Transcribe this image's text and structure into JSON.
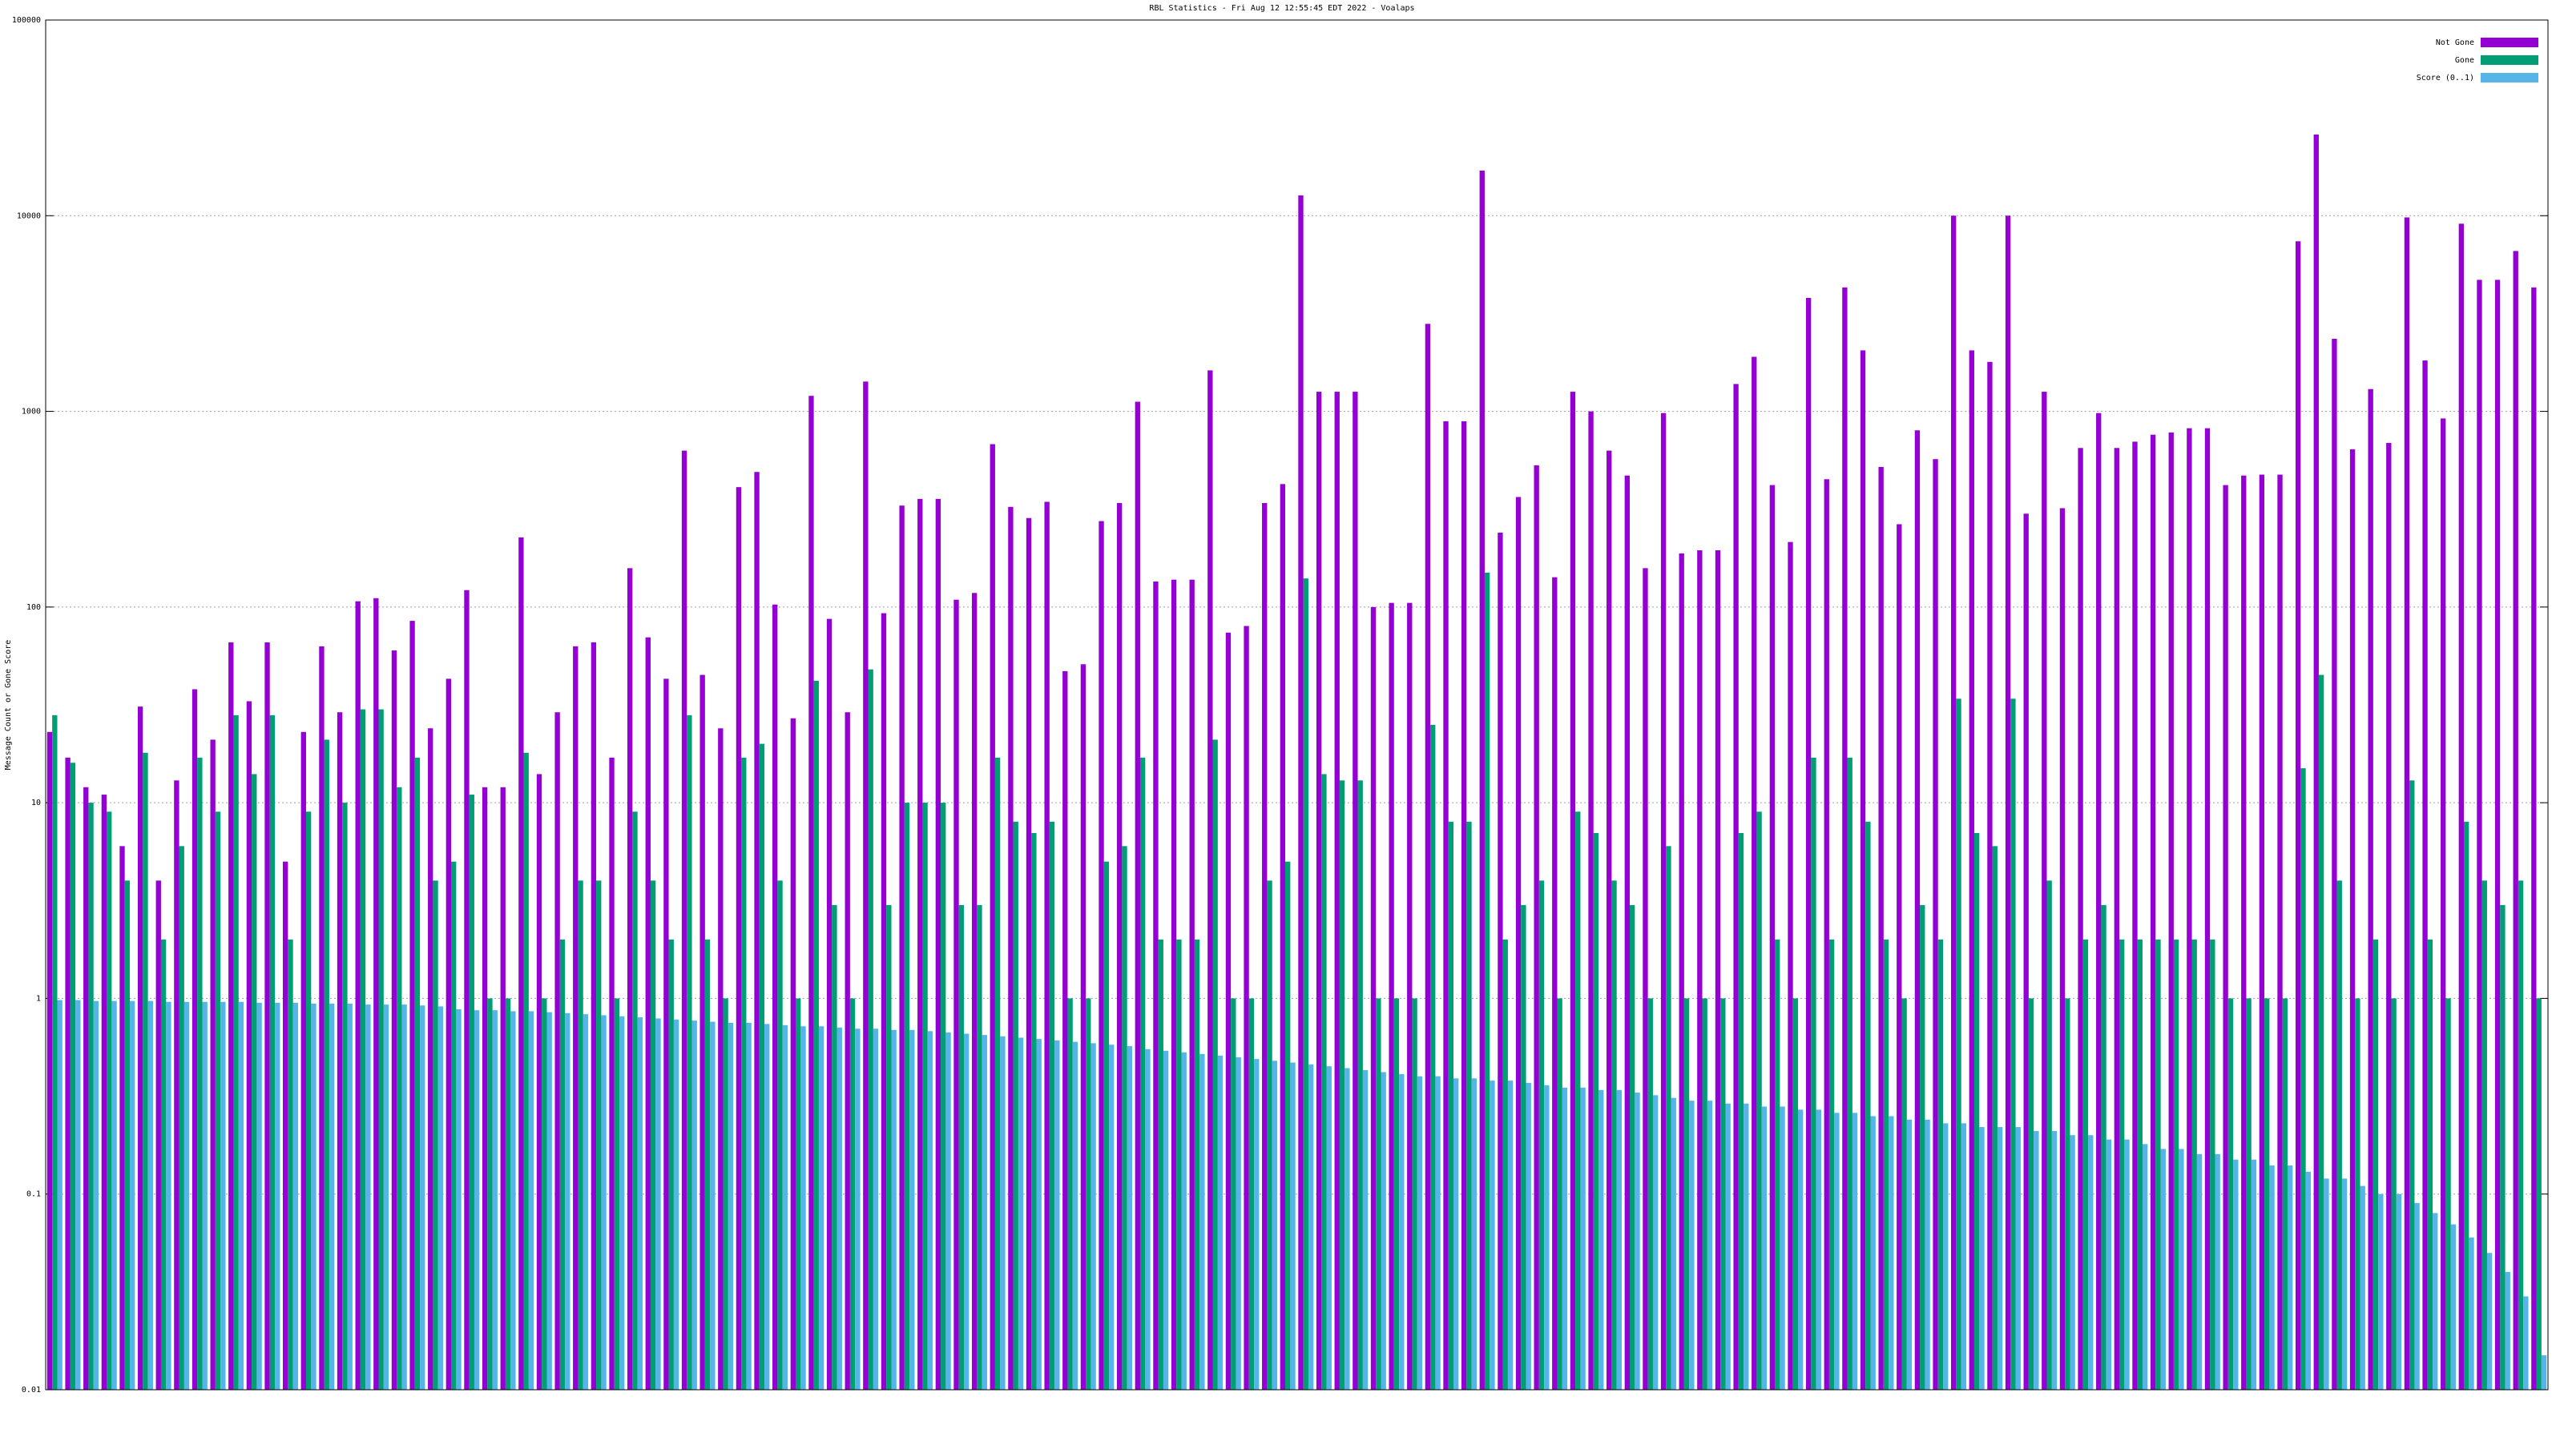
{
  "chart_data": {
    "type": "bar",
    "title": "RBL Statistics - Fri Aug 12 12:55:45 EDT 2022 - Voalaps",
    "ylabel": "Message Count or Gone Score",
    "log_y": true,
    "grid": true,
    "legend": "upper right",
    "ylim": [
      0.01,
      100000
    ],
    "yticks": [
      0.01,
      0.1,
      1,
      10,
      100,
      1000,
      10000,
      100000
    ],
    "categories": [
      null,
      null,
      null,
      null,
      null,
      null,
      null,
      null,
      null,
      null,
      null,
      null,
      null,
      null,
      null,
      null,
      null,
      null,
      null,
      null,
      null,
      null,
      null,
      null,
      null,
      null,
      null,
      null,
      null,
      null,
      null,
      null,
      null,
      null,
      null,
      null,
      null,
      null,
      null,
      null,
      null,
      null,
      null,
      null,
      null,
      null,
      null,
      null,
      null,
      null,
      null,
      null,
      null,
      null,
      null,
      null,
      null,
      null,
      null,
      null,
      null,
      null,
      null,
      null,
      null,
      null,
      null,
      null,
      null,
      null,
      null,
      null,
      null,
      null,
      null,
      null,
      null,
      null,
      null,
      null,
      null,
      null,
      null,
      null,
      null,
      null,
      null,
      null,
      null,
      null,
      null,
      null,
      null,
      null,
      null,
      null,
      null,
      null,
      null,
      null,
      null,
      null,
      null,
      null,
      null,
      null,
      null,
      null,
      null,
      null,
      null,
      null,
      null,
      null,
      null,
      null,
      null,
      null,
      null,
      null,
      null,
      null,
      null,
      null,
      null,
      null,
      null,
      null,
      null,
      null,
      null,
      null,
      null,
      null,
      null,
      null,
      null,
      null
    ],
    "series": [
      {
        "name": "Not Gone",
        "color": "#9400d3",
        "values": [
          23,
          17,
          12,
          11,
          6,
          31,
          4,
          13,
          38,
          21,
          66,
          33,
          66,
          5,
          23,
          63,
          29,
          107,
          111,
          60,
          85,
          24,
          43,
          122,
          12,
          12,
          227,
          14,
          29,
          63,
          66,
          17,
          158,
          70,
          43,
          630,
          45,
          24,
          410,
          490,
          103,
          27,
          1200,
          87,
          29,
          1420,
          93,
          330,
          357,
          357,
          109,
          118,
          680,
          325,
          285,
          345,
          47,
          51,
          275,
          340,
          1120,
          135,
          138,
          138,
          1620,
          74,
          80,
          340,
          425,
          12700,
          1260,
          1260,
          1260,
          100,
          105,
          105,
          2800,
          890,
          890,
          17000,
          240,
          365,
          530,
          142,
          1260,
          1000,
          630,
          470,
          158,
          980,
          188,
          195,
          195,
          1380,
          1900,
          420,
          215,
          3800,
          450,
          4300,
          2050,
          520,
          265,
          800,
          570,
          10000,
          2050,
          1790,
          10000,
          300,
          1260,
          320,
          650,
          980,
          650,
          700,
          760,
          780,
          820,
          820,
          420,
          470,
          475,
          475,
          7400,
          26000,
          2350,
          640,
          1300,
          690,
          9800,
          1820,
          920,
          9100,
          4700,
          4700,
          6600,
          4300
        ]
      },
      {
        "name": "Gone",
        "color": "#009e73",
        "values": [
          28,
          16,
          10,
          9,
          4,
          18,
          2,
          6,
          17,
          9,
          28,
          14,
          28,
          2,
          9,
          21,
          10,
          30,
          30,
          12,
          17,
          4,
          5,
          11,
          1,
          1,
          18,
          1,
          2,
          4,
          4,
          1,
          9,
          4,
          2,
          28,
          2,
          1,
          17,
          20,
          4,
          1,
          42,
          3,
          1,
          48,
          3,
          10,
          10,
          10,
          3,
          3,
          17,
          8,
          7,
          8,
          1,
          1,
          5,
          6,
          17,
          2,
          2,
          2,
          21,
          1,
          1,
          4,
          5,
          140,
          14,
          13,
          13,
          1,
          1,
          1,
          25,
          8,
          8,
          150,
          2,
          3,
          4,
          1,
          9,
          7,
          4,
          3,
          1,
          6,
          1,
          1,
          1,
          7,
          9,
          2,
          1,
          17,
          2,
          17,
          8,
          2,
          1,
          3,
          2,
          34,
          7,
          6,
          34,
          1,
          4,
          1,
          2,
          3,
          2,
          2,
          2,
          2,
          2,
          2,
          1,
          1,
          1,
          1,
          15,
          45,
          4,
          1,
          2,
          1,
          13,
          2,
          1,
          8,
          4,
          3,
          4,
          1
        ]
      },
      {
        "name": "Score (0..1)",
        "color": "#56b4e9",
        "values": [
          0.98,
          0.98,
          0.97,
          0.97,
          0.97,
          0.97,
          0.96,
          0.96,
          0.96,
          0.96,
          0.96,
          0.95,
          0.95,
          0.95,
          0.94,
          0.94,
          0.94,
          0.93,
          0.93,
          0.93,
          0.92,
          0.91,
          0.88,
          0.87,
          0.87,
          0.86,
          0.86,
          0.85,
          0.84,
          0.83,
          0.82,
          0.81,
          0.8,
          0.79,
          0.78,
          0.77,
          0.76,
          0.75,
          0.75,
          0.74,
          0.73,
          0.72,
          0.72,
          0.71,
          0.7,
          0.7,
          0.69,
          0.69,
          0.68,
          0.67,
          0.66,
          0.65,
          0.64,
          0.63,
          0.62,
          0.61,
          0.6,
          0.59,
          0.58,
          0.57,
          0.55,
          0.54,
          0.53,
          0.52,
          0.51,
          0.5,
          0.49,
          0.48,
          0.47,
          0.46,
          0.45,
          0.44,
          0.43,
          0.42,
          0.41,
          0.4,
          0.4,
          0.39,
          0.39,
          0.38,
          0.38,
          0.37,
          0.36,
          0.35,
          0.35,
          0.34,
          0.34,
          0.33,
          0.32,
          0.31,
          0.3,
          0.3,
          0.29,
          0.29,
          0.28,
          0.28,
          0.27,
          0.27,
          0.26,
          0.26,
          0.25,
          0.25,
          0.24,
          0.24,
          0.23,
          0.23,
          0.22,
          0.22,
          0.22,
          0.21,
          0.21,
          0.2,
          0.2,
          0.19,
          0.19,
          0.18,
          0.17,
          0.17,
          0.16,
          0.16,
          0.15,
          0.15,
          0.14,
          0.14,
          0.13,
          0.12,
          0.12,
          0.11,
          0.1,
          0.1,
          0.09,
          0.08,
          0.07,
          0.06,
          0.05,
          0.04,
          0.03,
          0.015
        ]
      }
    ]
  }
}
